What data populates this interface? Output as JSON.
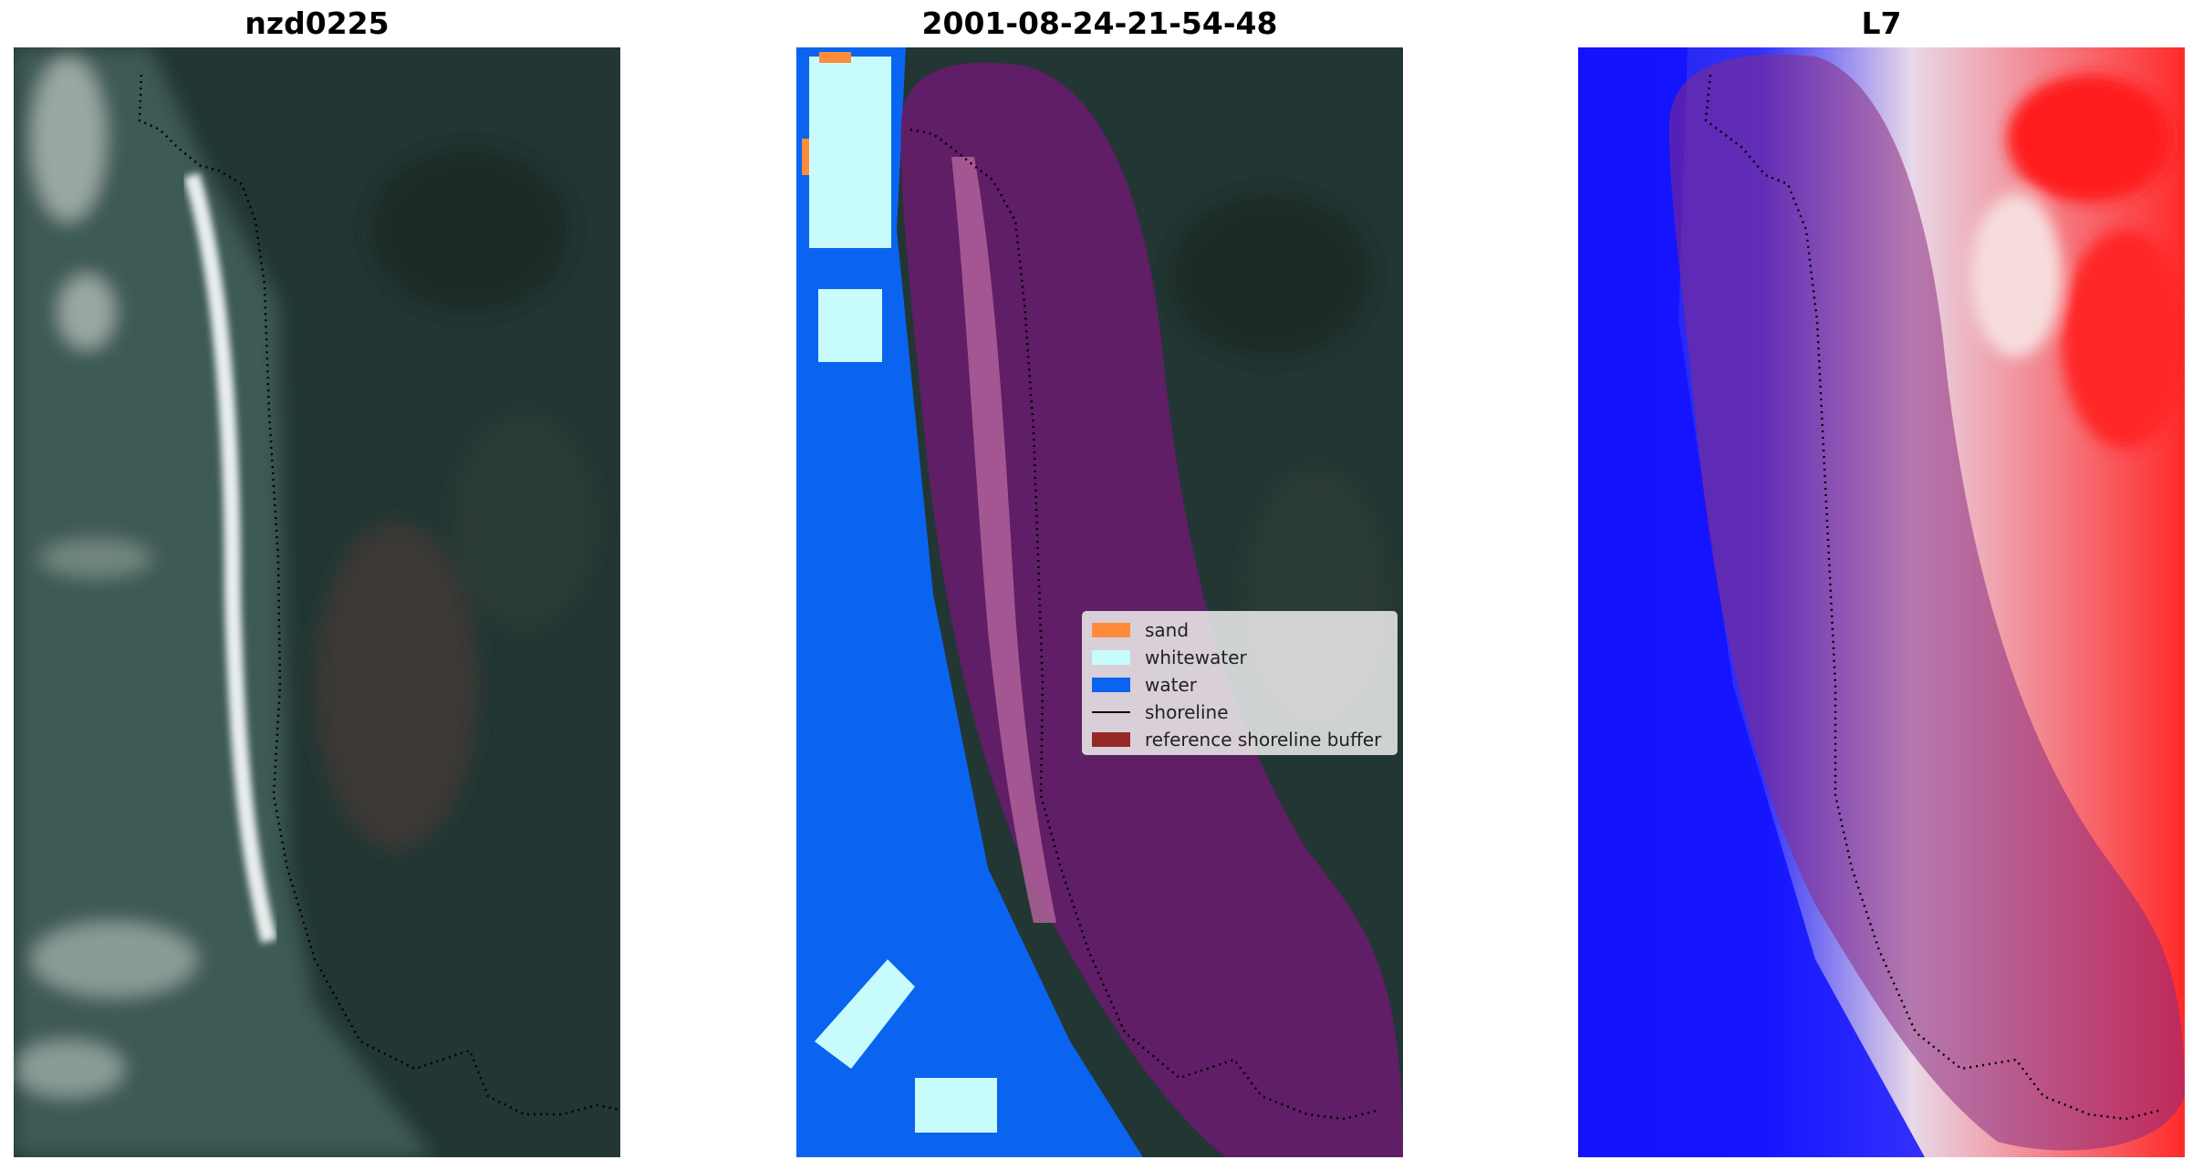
{
  "panels": [
    {
      "title": "nzd0225",
      "content": "rgb-satellite-image"
    },
    {
      "title": "2001-08-24-21-54-48",
      "content": "classified-image"
    },
    {
      "title": "L7",
      "content": "index-image"
    }
  ],
  "legend": {
    "items": [
      {
        "label": "sand",
        "color": "#ff8c3a",
        "kind": "patch"
      },
      {
        "label": "whitewater",
        "color": "#c8fcfc",
        "kind": "patch"
      },
      {
        "label": "water",
        "color": "#0a64f0",
        "kind": "patch"
      },
      {
        "label": "shoreline",
        "color": "#000000",
        "kind": "line"
      },
      {
        "label": "reference shoreline buffer",
        "color": "#962828",
        "kind": "patch"
      }
    ]
  },
  "colors": {
    "land_dark": "#223633",
    "ocean_gray": "#3e5550",
    "buffer_overlay": "#7a1a55",
    "index_positive": "#ff2020",
    "index_negative": "#1010ff"
  }
}
